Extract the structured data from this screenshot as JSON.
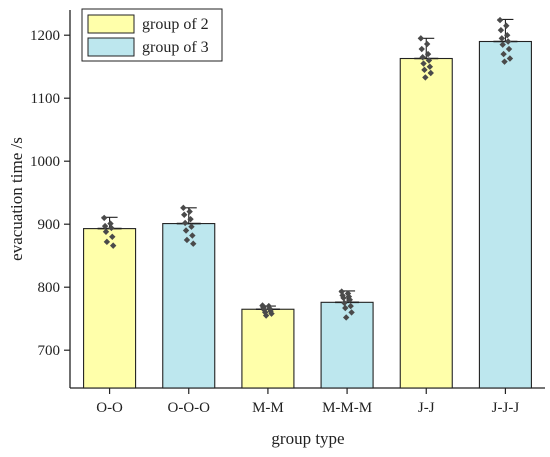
{
  "chart_data": {
    "type": "bar",
    "xlabel": "group type",
    "ylabel": "evacuation time /s",
    "ylim": [
      640,
      1240
    ],
    "yticks": [
      700,
      800,
      900,
      1000,
      1100,
      1200
    ],
    "legend_position": "top-left",
    "categories": [
      "O-O",
      "O-O-O",
      "M-M",
      "M-M-M",
      "J-J",
      "J-J-J"
    ],
    "values": [
      893,
      901,
      765,
      776,
      1163,
      1190
    ],
    "errors": [
      18,
      25,
      5,
      18,
      32,
      35
    ],
    "bar_series": [
      "group of 2",
      "group of 3",
      "group of 2",
      "group of 3",
      "group of 2",
      "group of 3"
    ],
    "series": [
      {
        "name": "group of 2",
        "color": "#ffffaa"
      },
      {
        "name": "group of 3",
        "color": "#bde7ee"
      }
    ],
    "points": [
      [
        910,
        901,
        897,
        894,
        888,
        880,
        872,
        866
      ],
      [
        926,
        920,
        915,
        908,
        902,
        896,
        890,
        882,
        875,
        869
      ],
      [
        771,
        770,
        768,
        766,
        764,
        762,
        760,
        758,
        755
      ],
      [
        793,
        790,
        787,
        785,
        783,
        780,
        775,
        770,
        767,
        760,
        752
      ],
      [
        1195,
        1186,
        1178,
        1170,
        1165,
        1160,
        1155,
        1150,
        1145,
        1140,
        1133
      ],
      [
        1224,
        1215,
        1208,
        1200,
        1195,
        1190,
        1185,
        1178,
        1170,
        1163,
        1158
      ]
    ],
    "point_color": "#4a4a4a"
  }
}
